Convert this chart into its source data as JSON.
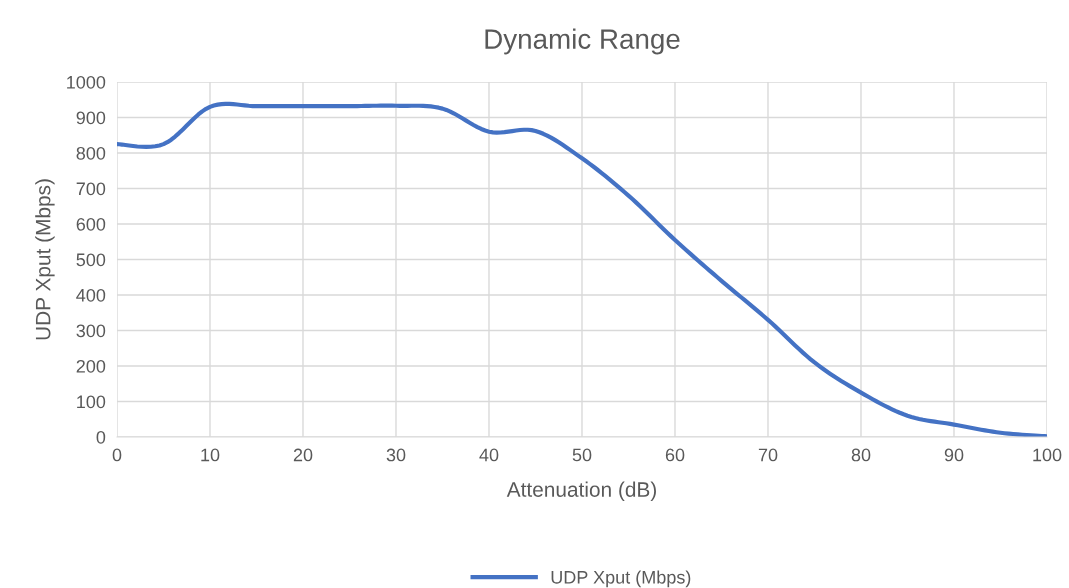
{
  "chart_data": {
    "type": "line",
    "title": "Dynamic Range",
    "xlabel": "Attenuation (dB)",
    "ylabel": "UDP Xput (Mbps)",
    "x": [
      0,
      5,
      10,
      15,
      20,
      25,
      30,
      35,
      40,
      45,
      50,
      55,
      60,
      65,
      70,
      75,
      80,
      85,
      90,
      95,
      100
    ],
    "series": [
      {
        "name": "UDP Xput (Mbps)",
        "color": "#4472c4",
        "values": [
          825,
          825,
          930,
          932,
          932,
          932,
          933,
          925,
          860,
          862,
          785,
          680,
          555,
          440,
          330,
          210,
          125,
          60,
          35,
          12,
          2
        ]
      }
    ],
    "xlim": [
      0,
      100
    ],
    "xticks": [
      0,
      10,
      20,
      30,
      40,
      50,
      60,
      70,
      80,
      90,
      100
    ],
    "ylim": [
      0,
      1000
    ],
    "yticks": [
      0,
      100,
      200,
      300,
      400,
      500,
      600,
      700,
      800,
      900,
      1000
    ],
    "grid": true,
    "legend": "bottom",
    "marker": "none",
    "line_style": "solid"
  }
}
